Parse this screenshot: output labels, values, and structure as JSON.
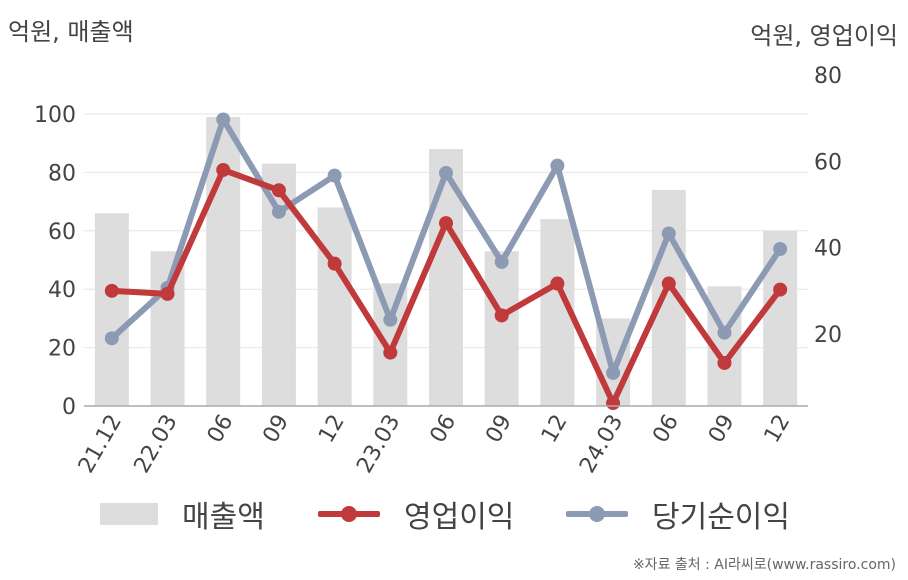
{
  "header": {
    "left_unit": "억원, 매출액",
    "right_unit": "억원, 영업이익"
  },
  "legend": {
    "sales": "매출액",
    "operating_profit": "영업이익",
    "net_income": "당기순이익"
  },
  "source": "※자료 출처 : AI라씨로(www.rassiro.com)",
  "colors": {
    "bars": "#dddddd",
    "operating_profit": "#c0393b",
    "net_income": "#8d9ab3",
    "grid": "#e6e6e6",
    "axis": "#aaaaaa"
  },
  "chart_data": {
    "type": "bar",
    "categories": [
      "21.12",
      "22.03",
      "06",
      "09",
      "12",
      "23.03",
      "06",
      "09",
      "12",
      "24.03",
      "06",
      "09",
      "12"
    ],
    "y_left": {
      "label": "억원, 매출액",
      "ylim": [
        0,
        100
      ],
      "ticks": [
        0,
        20,
        40,
        60,
        80,
        100
      ]
    },
    "y_right": {
      "label": "억원, 영업이익",
      "ylim": [
        3.33,
        80
      ],
      "ticks": [
        20,
        40,
        60,
        80
      ]
    },
    "series": [
      {
        "name": "매출액",
        "type": "bar",
        "axis": "left",
        "values": [
          66,
          53,
          99,
          83,
          68,
          42,
          88,
          53,
          64,
          30,
          74,
          41,
          60
        ]
      },
      {
        "name": "영업이익",
        "type": "line",
        "axis": "right",
        "values": [
          30,
          29.3,
          58,
          53.3,
          36.3,
          15.7,
          45.7,
          24.3,
          31.7,
          4,
          31.7,
          13.3,
          30.3
        ]
      },
      {
        "name": "당기순이익",
        "type": "line",
        "axis": "right",
        "values": [
          19,
          30.7,
          69.7,
          48.3,
          56.7,
          23.3,
          57.3,
          36.7,
          59,
          11,
          43.3,
          20.3,
          39.7
        ]
      }
    ],
    "grid": true,
    "legend_position": "bottom"
  }
}
